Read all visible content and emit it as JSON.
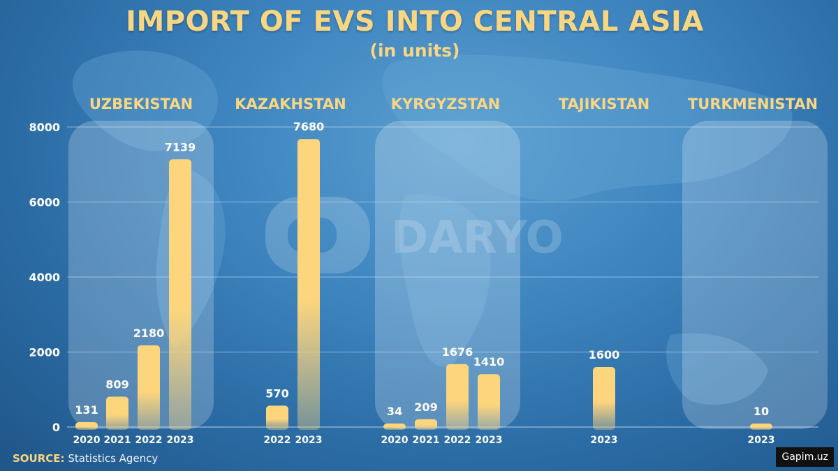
{
  "title": "IMPORT OF EVS INTO CENTRAL ASIA",
  "subtitle": "(in units)",
  "watermark": "DARYO",
  "source_label": "SOURCE:",
  "source_text": "Statistics Agency",
  "credit": "Gapim.uz",
  "colors": {
    "bar": "#fdd57d",
    "accent": "#f9d682",
    "label": "#ffffff",
    "panel": "rgba(255,255,255,0.22)"
  },
  "chart_data": {
    "type": "bar",
    "ylim": [
      0,
      8000
    ],
    "yticks": [
      "0",
      "2000",
      "4000",
      "6000",
      "8000"
    ],
    "grid": true,
    "groups": [
      {
        "name": "UZBEKISTAN",
        "highlight": true,
        "categories": [
          "2020",
          "2021",
          "2022",
          "2023"
        ],
        "values": [
          131,
          809,
          2180,
          7139
        ],
        "labels": [
          "131",
          "809",
          "2180",
          "7139"
        ]
      },
      {
        "name": "KAZAKHSTAN",
        "highlight": false,
        "categories": [
          "2022",
          "2023"
        ],
        "values": [
          570,
          7680
        ],
        "labels": [
          "570",
          "7680"
        ]
      },
      {
        "name": "KYRGYZSTAN",
        "highlight": true,
        "categories": [
          "2020",
          "2021",
          "2022",
          "2023"
        ],
        "values": [
          34,
          209,
          1676,
          1410
        ],
        "labels": [
          "34",
          "209",
          "1676",
          "1410"
        ]
      },
      {
        "name": "TAJIKISTAN",
        "highlight": false,
        "categories": [
          "2023"
        ],
        "values": [
          1600
        ],
        "labels": [
          "1600"
        ]
      },
      {
        "name": "TURKMENISTAN",
        "highlight": true,
        "categories": [
          "2023"
        ],
        "values": [
          10
        ],
        "labels": [
          "10"
        ]
      }
    ]
  }
}
